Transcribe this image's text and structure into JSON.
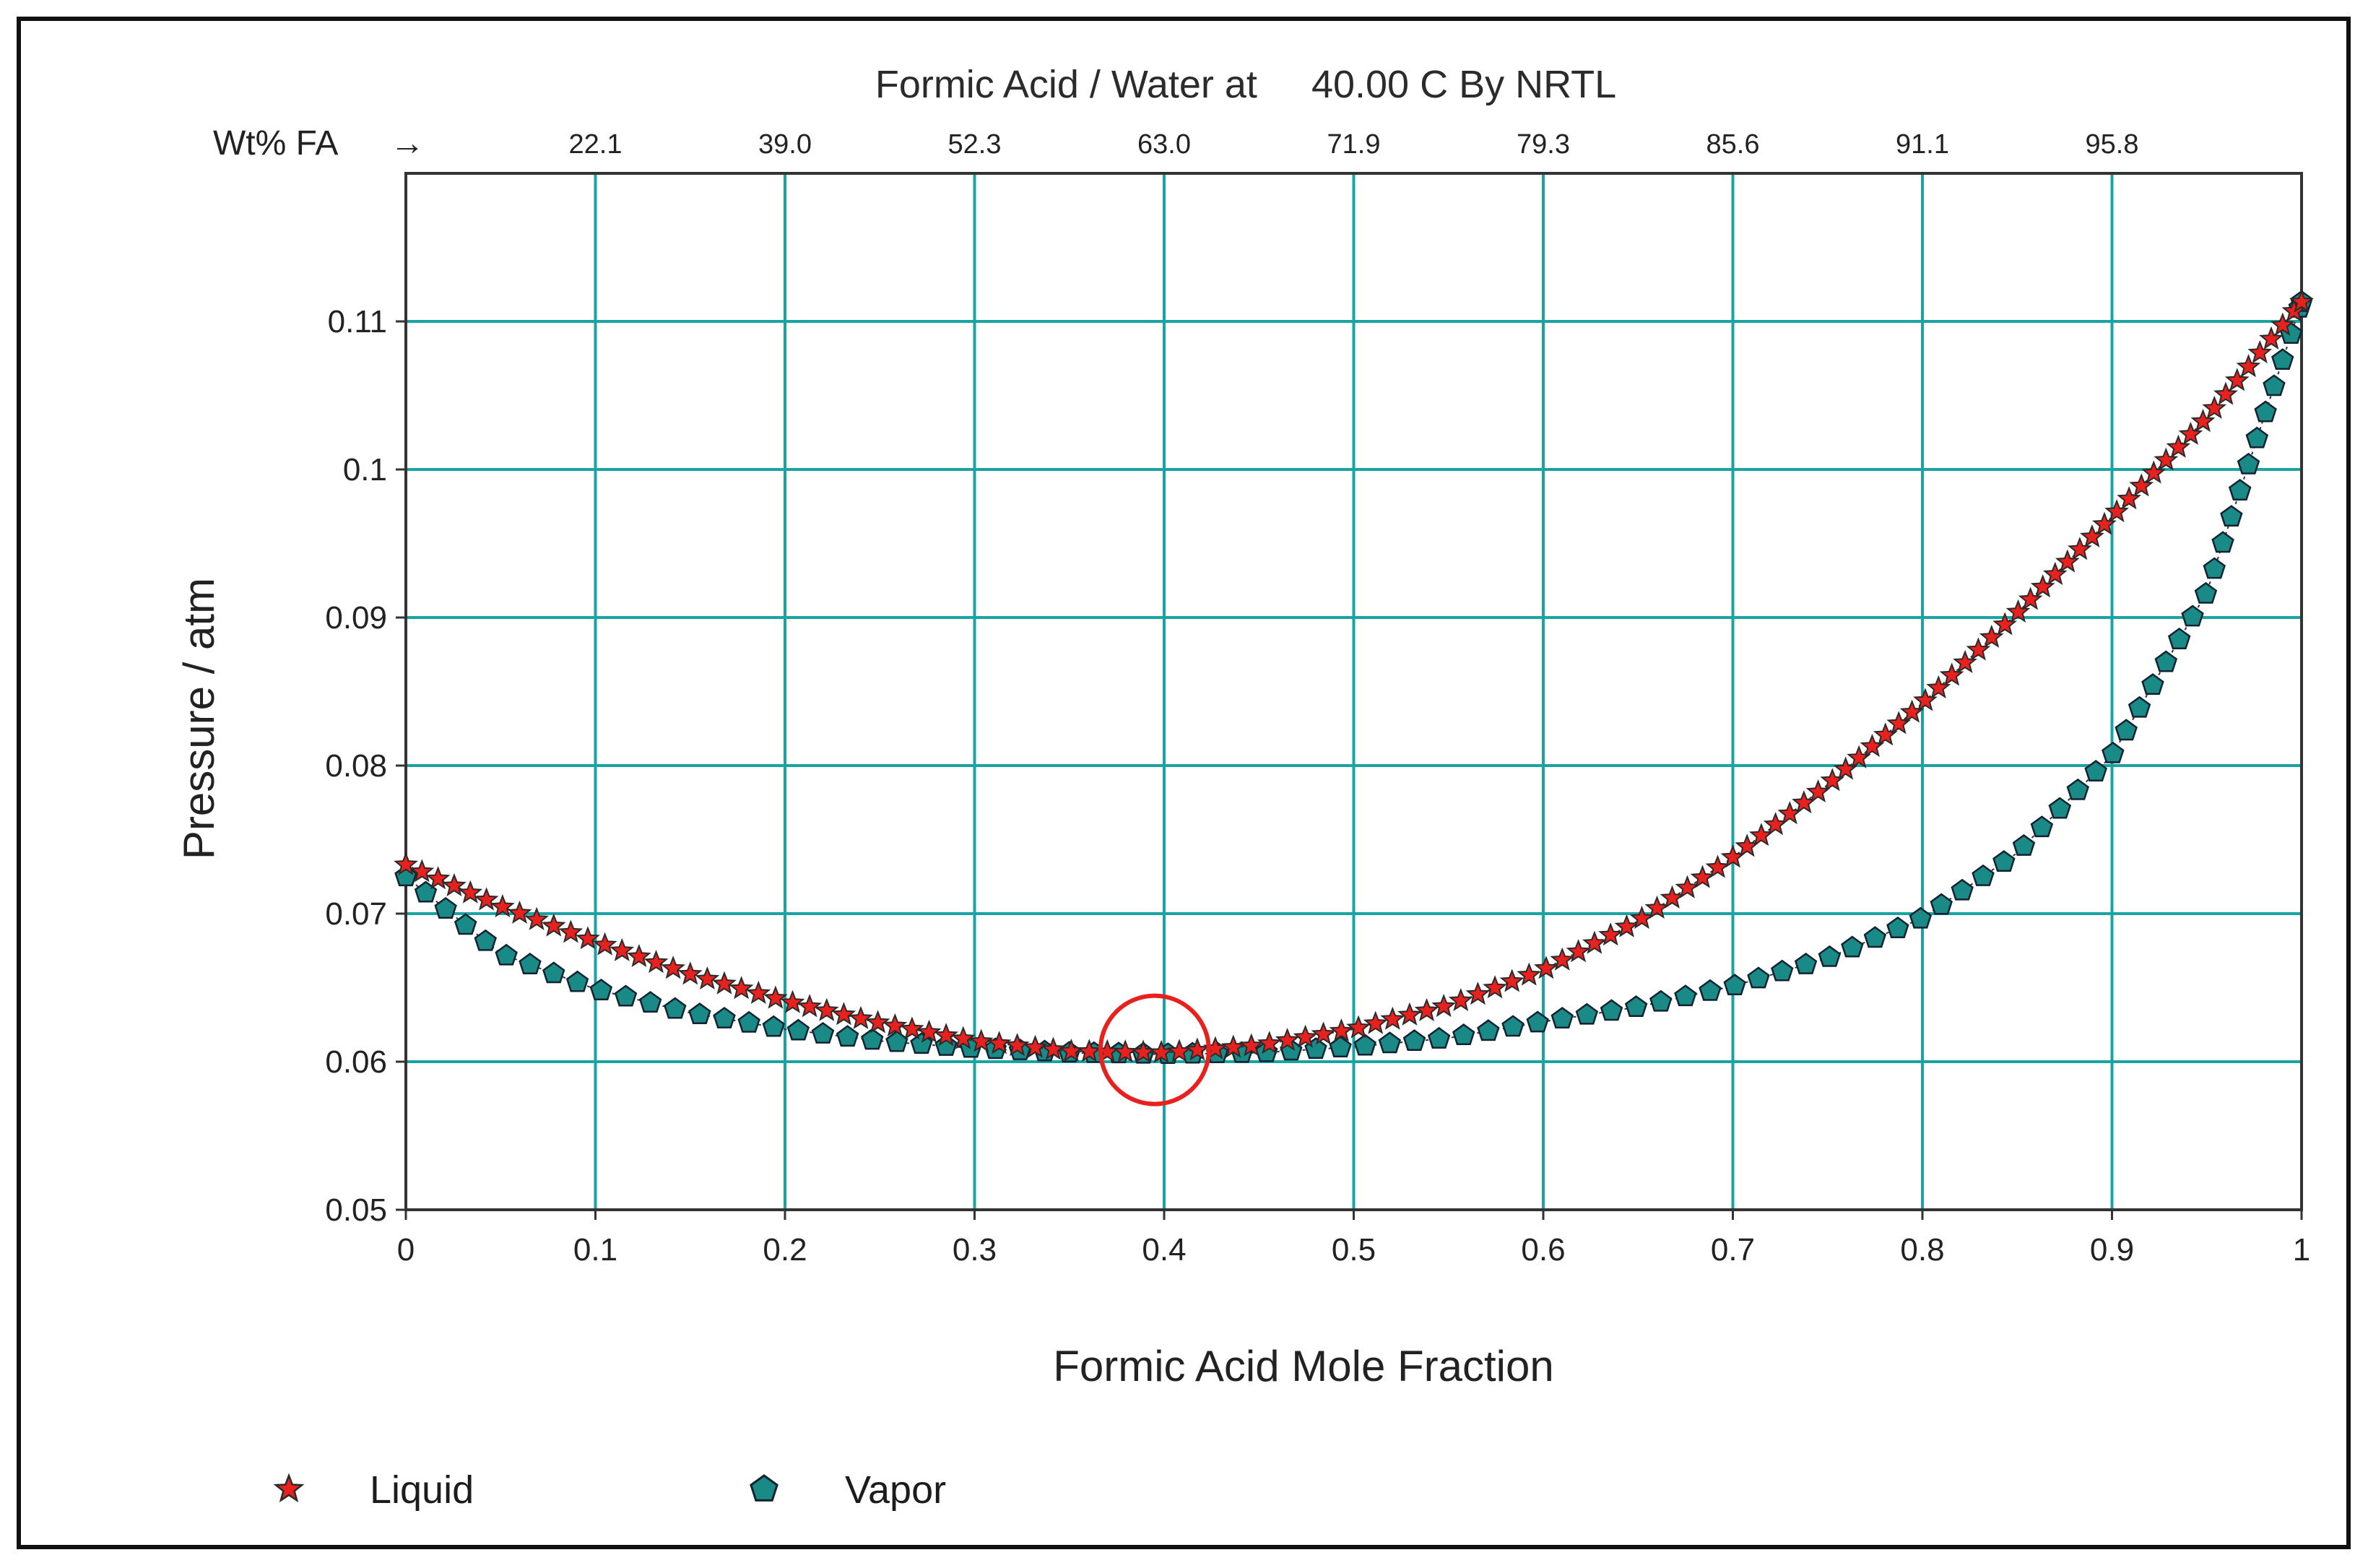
{
  "chart_data": {
    "type": "scatter",
    "title": "Formic Acid / Water at     40.00 C By NRTL",
    "xlabel": "Formic Acid Mole Fraction",
    "ylabel": "Pressure / atm",
    "xlim": [
      0,
      1
    ],
    "ylim": [
      0.05,
      0.12
    ],
    "grid": true,
    "grid_color": "#1aa3a3",
    "x_ticks": [
      "0",
      "0.1",
      "0.2",
      "0.3",
      "0.4",
      "0.5",
      "0.6",
      "0.7",
      "0.8",
      "0.9",
      "1"
    ],
    "y_ticks": [
      "0.05",
      "0.06",
      "0.07",
      "0.08",
      "0.09",
      "0.1",
      "0.11"
    ],
    "top_axis": {
      "label": "Wt% FA",
      "arrow": "→",
      "ticks": [
        "22.1",
        "39.0",
        "52.3",
        "63.0",
        "71.9",
        "79.3",
        "85.6",
        "91.1",
        "95.8"
      ]
    },
    "legend_position": "bottom-left",
    "series": [
      {
        "name": "Liquid",
        "marker": "star",
        "color": "#e8201e",
        "x": [
          0,
          0.05,
          0.1,
          0.15,
          0.2,
          0.25,
          0.3,
          0.35,
          0.4,
          0.45,
          0.5,
          0.55,
          0.6,
          0.65,
          0.7,
          0.75,
          0.8,
          0.85,
          0.9,
          0.95,
          1
        ],
        "y": [
          0.0733,
          0.0705,
          0.0681,
          0.0659,
          0.0641,
          0.0626,
          0.0614,
          0.0607,
          0.0606,
          0.0611,
          0.0622,
          0.0638,
          0.0662,
          0.0695,
          0.0738,
          0.0787,
          0.0842,
          0.0903,
          0.0968,
          0.1035,
          0.1113
        ]
      },
      {
        "name": "Vapor",
        "marker": "pentagon",
        "color": "#1a8a86",
        "x": [
          0,
          0.05,
          0.1,
          0.15,
          0.2,
          0.25,
          0.3,
          0.35,
          0.4,
          0.45,
          0.5,
          0.55,
          0.6,
          0.65,
          0.7,
          0.75,
          0.8,
          0.85,
          0.9,
          0.95,
          1
        ],
        "y": [
          0.0725,
          0.0673,
          0.0649,
          0.0633,
          0.0622,
          0.0614,
          0.0609,
          0.0606,
          0.0605,
          0.0606,
          0.061,
          0.0616,
          0.0627,
          0.0637,
          0.0651,
          0.067,
          0.0697,
          0.0741,
          0.0807,
          0.0917,
          0.1113
        ]
      }
    ],
    "annotation": {
      "type": "circle",
      "color": "#e8201e",
      "x": 0.395,
      "y": 0.0608
    }
  }
}
